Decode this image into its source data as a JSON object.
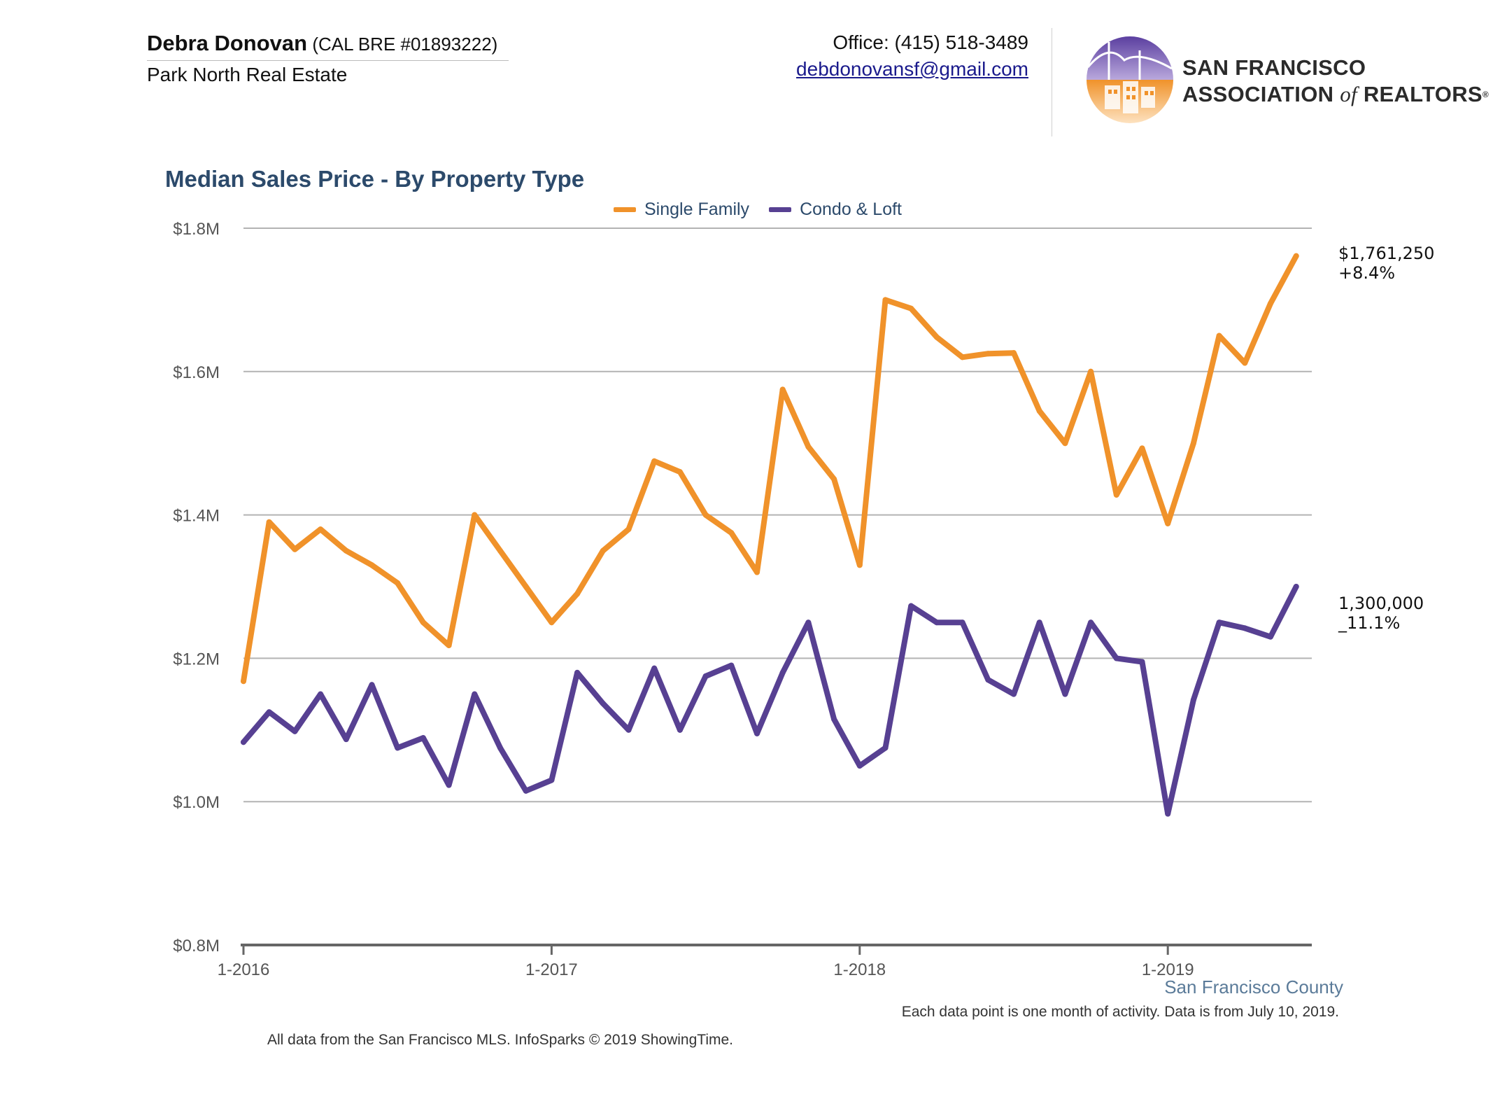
{
  "header": {
    "agent_name": "Debra Donovan",
    "agent_license": " (CAL BRE #01893222)",
    "company": "Park North Real Estate",
    "office_phone": "Office: (415) 518-3489",
    "email": "debdonovansf@gmail.com"
  },
  "logo": {
    "line1": "SAN FRANCISCO",
    "line2_a": "ASSOCIATION ",
    "line2_of": "of",
    "line2_b": " REALTORS",
    "trademark": "®"
  },
  "annotations": {
    "single_family_value": "$1,761,250",
    "single_family_change": "+8.4%",
    "condo_value": "1,300,000",
    "condo_change": "_11.1%"
  },
  "footer": {
    "region": "San Francisco County",
    "note": "Each data point is one month of activity. Data is from July 10, 2019.",
    "source": "All data from the San Francisco MLS. InfoSparks © 2019 ShowingTime."
  },
  "colors": {
    "single_family": "#f0922a",
    "condo_loft": "#574092",
    "title": "#2c4a6b",
    "grid": "#b3b3b3",
    "axis": "#666666"
  },
  "chart_data": {
    "type": "line",
    "title": "Median Sales Price - By Property Type",
    "xlabel": "",
    "ylabel": "",
    "x": [
      "1-2016",
      "2-2016",
      "3-2016",
      "4-2016",
      "5-2016",
      "6-2016",
      "7-2016",
      "8-2016",
      "9-2016",
      "10-2016",
      "11-2016",
      "12-2016",
      "1-2017",
      "2-2017",
      "3-2017",
      "4-2017",
      "5-2017",
      "6-2017",
      "7-2017",
      "8-2017",
      "9-2017",
      "10-2017",
      "11-2017",
      "12-2017",
      "1-2018",
      "2-2018",
      "3-2018",
      "4-2018",
      "5-2018",
      "6-2018",
      "7-2018",
      "8-2018",
      "9-2018",
      "10-2018",
      "11-2018",
      "12-2018",
      "1-2019",
      "2-2019",
      "3-2019",
      "4-2019",
      "5-2019",
      "6-2019"
    ],
    "x_tick_labels": [
      "1-2016",
      "1-2017",
      "1-2018",
      "1-2019"
    ],
    "y_ticks": [
      "$0.8M",
      "$1.0M",
      "$1.2M",
      "$1.4M",
      "$1.6M",
      "$1.8M"
    ],
    "ylim": [
      800000,
      1800000
    ],
    "grid": true,
    "legend_position": "top-center",
    "series": [
      {
        "name": "Single Family",
        "color": "#f0922a",
        "values": [
          1168000,
          1390000,
          1352000,
          1380000,
          1350000,
          1330000,
          1305000,
          1250000,
          1218000,
          1400000,
          1350000,
          1300000,
          1250000,
          1290000,
          1350000,
          1380000,
          1475000,
          1460000,
          1400000,
          1375000,
          1320000,
          1575000,
          1495000,
          1450000,
          1330000,
          1700000,
          1688000,
          1648000,
          1620000,
          1625000,
          1626000,
          1545000,
          1500000,
          1600000,
          1428000,
          1493000,
          1388000,
          1500000,
          1650000,
          1612000,
          1695000,
          1761250
        ]
      },
      {
        "name": "Condo & Loft",
        "color": "#574092",
        "values": [
          1083000,
          1125000,
          1098000,
          1150000,
          1087000,
          1163000,
          1075000,
          1089000,
          1023000,
          1150000,
          1075000,
          1015000,
          1030000,
          1180000,
          1137000,
          1100000,
          1186000,
          1100000,
          1175000,
          1190000,
          1095000,
          1180000,
          1250000,
          1115000,
          1050000,
          1075000,
          1273000,
          1250000,
          1250000,
          1170000,
          1150000,
          1250000,
          1150000,
          1250000,
          1200000,
          1195000,
          983000,
          1142000,
          1250000,
          1242000,
          1230000,
          1300000
        ]
      }
    ]
  }
}
